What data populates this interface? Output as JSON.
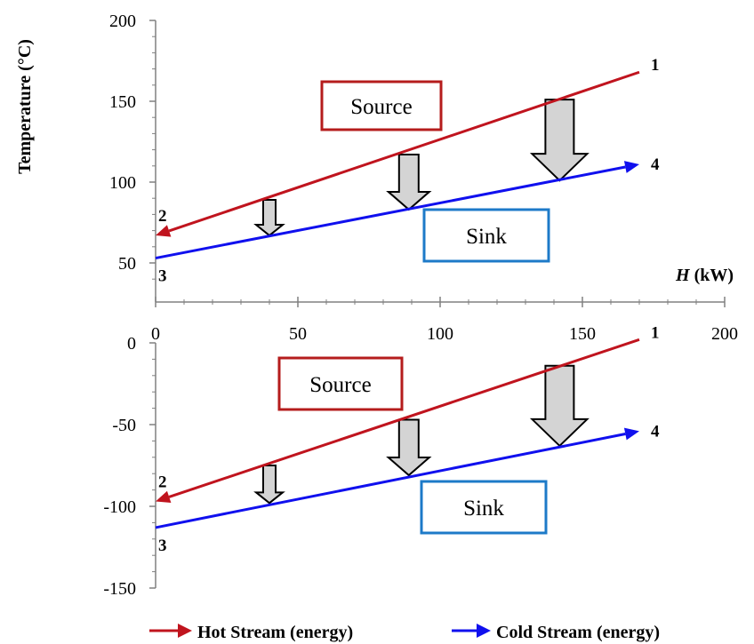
{
  "chart_data": {
    "type": "line",
    "x_axis": {
      "label_italic": "H",
      "label_rest": " (kW)",
      "range": [
        0,
        200
      ],
      "ticks": [
        0,
        50,
        100,
        150,
        200
      ],
      "tick_labels": [
        "0",
        "50",
        "100",
        "150",
        "200"
      ]
    },
    "y_label": "Temperature (°C)",
    "panels": [
      {
        "name": "top",
        "ylim": [
          40,
          200
        ],
        "ticks": [
          50,
          100,
          150,
          200
        ],
        "tick_labels": [
          "50",
          "100",
          "150",
          "200"
        ],
        "hot": {
          "x": [
            170,
            0
          ],
          "y": [
            168,
            67
          ]
        },
        "cold": {
          "x": [
            0,
            170
          ],
          "y": [
            53,
            111
          ]
        },
        "point_labels": [
          "1",
          "2",
          "3",
          "4"
        ],
        "arrows": [
          {
            "x": 40,
            "top": 89,
            "bottom": 67,
            "size": "small"
          },
          {
            "x": 89,
            "top": 117,
            "bottom": 83,
            "size": "medium"
          },
          {
            "x": 142,
            "top": 151,
            "bottom": 101,
            "size": "large"
          }
        ],
        "source_label": "Source",
        "sink_label": "Sink"
      },
      {
        "name": "bottom",
        "ylim": [
          -150,
          0
        ],
        "ticks": [
          0,
          -50,
          -100,
          -150
        ],
        "tick_labels": [
          "0",
          "-50",
          "-100",
          "-150"
        ],
        "hot": {
          "x": [
            170,
            0
          ],
          "y": [
            2,
            -97
          ]
        },
        "cold": {
          "x": [
            0,
            170
          ],
          "y": [
            -113,
            -54
          ]
        },
        "point_labels": [
          "1",
          "2",
          "3",
          "4"
        ],
        "arrows": [
          {
            "x": 40,
            "top": -75,
            "bottom": -98,
            "size": "small"
          },
          {
            "x": 89,
            "top": -47,
            "bottom": -81,
            "size": "medium"
          },
          {
            "x": 142,
            "top": -14,
            "bottom": -63,
            "size": "large"
          }
        ],
        "source_label": "Source",
        "sink_label": "Sink"
      }
    ],
    "legend": {
      "position": "bottom",
      "entries": [
        {
          "name": "Hot Stream (energy)",
          "color": "#c0141e"
        },
        {
          "name": "Cold Stream (energy)",
          "color": "#1010ee"
        }
      ]
    },
    "colors": {
      "hot": "#c0141e",
      "cold": "#1010ee",
      "source_border": "#b51c1c",
      "sink_border": "#1d7ac8",
      "heat_arrow_fill": "#d4d4d4"
    }
  }
}
